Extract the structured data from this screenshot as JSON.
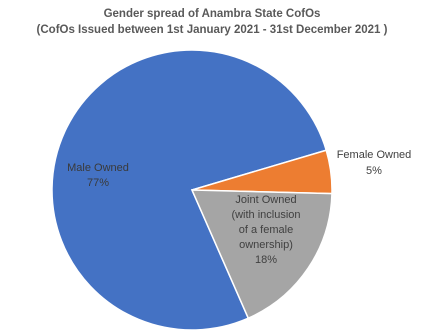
{
  "chart_data": {
    "type": "pie",
    "title": "Gender spread of Anambra State CofOs",
    "subtitle": "(CofOs Issued between 1st January 2021 - 31st December 2021 )",
    "slices": [
      {
        "label": "Male Owned",
        "value": 77,
        "value_label": "77%",
        "color": "#4472C4",
        "text_color": "#3a3a3a"
      },
      {
        "label": "Female Owned",
        "value": 5,
        "value_label": "5%",
        "color": "#ED7D31",
        "text_color": "#404040"
      },
      {
        "label_lines": [
          "Joint Owned",
          "(with inclusion",
          "of a female",
          "ownership)"
        ],
        "value": 18,
        "value_label": "18%",
        "color": "#A5A5A5",
        "text_color": "#404040"
      }
    ],
    "legend": "none"
  }
}
